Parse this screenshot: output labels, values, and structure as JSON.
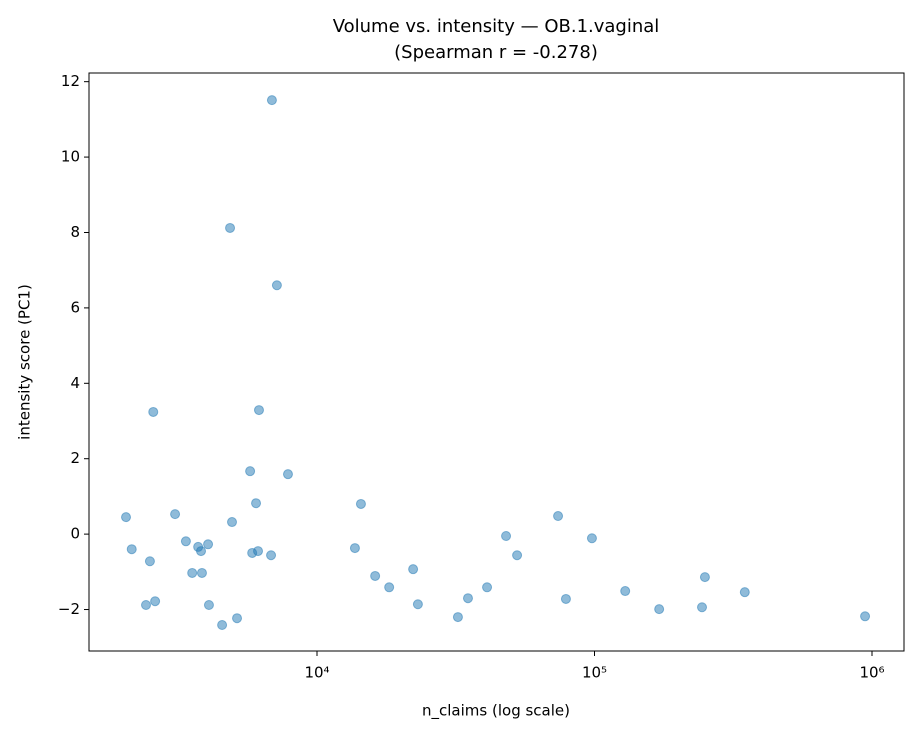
{
  "chart_data": {
    "type": "scatter",
    "title": "Volume vs. intensity — OB.1.vaginal",
    "subtitle": "(Spearman r = -0.278)",
    "x_label": "n_claims (log scale)",
    "y_label": "intensity score (PC1)",
    "x_scale": "log",
    "color": "#1f77b4",
    "xlim": [
      1508,
      1304000
    ],
    "ylim": [
      -3.1,
      12.23
    ],
    "xticks": [
      {
        "value": 10000,
        "label": "10⁴"
      },
      {
        "value": 100000,
        "label": "10⁵"
      },
      {
        "value": 1000000,
        "label": "10⁶"
      }
    ],
    "yticks": [
      {
        "value": -2,
        "label": "−2"
      },
      0,
      2,
      4,
      6,
      8,
      10,
      12
    ],
    "x": [
      2050,
      2150,
      2500,
      2420,
      2570,
      2610,
      3080,
      3370,
      3550,
      3730,
      3820,
      3850,
      4050,
      4080,
      4550,
      4860,
      4940,
      5150,
      5740,
      5840,
      6030,
      6130,
      6180,
      6830,
      6880,
      7170,
      7860,
      13700,
      14400,
      16200,
      18200,
      22200,
      23100,
      32200,
      35000,
      41000,
      48000,
      52600,
      73900,
      78900,
      97900,
      129000,
      171000,
      244000,
      250000,
      348000,
      944000
    ],
    "values": [
      0.45,
      -0.4,
      -0.72,
      -1.88,
      3.24,
      -1.78,
      0.53,
      -0.19,
      -1.03,
      -0.34,
      -0.45,
      -1.03,
      -0.27,
      -1.88,
      -2.41,
      8.12,
      0.32,
      -2.23,
      1.67,
      -0.5,
      0.82,
      -0.45,
      3.29,
      -0.56,
      11.51,
      6.6,
      1.59,
      -0.37,
      0.8,
      -1.11,
      -1.41,
      -0.93,
      -1.86,
      -2.2,
      -1.7,
      -1.41,
      -0.05,
      -0.56,
      0.48,
      -1.72,
      -0.11,
      -1.51,
      -1.99,
      -1.94,
      -1.14,
      -1.54,
      -2.18
    ]
  }
}
